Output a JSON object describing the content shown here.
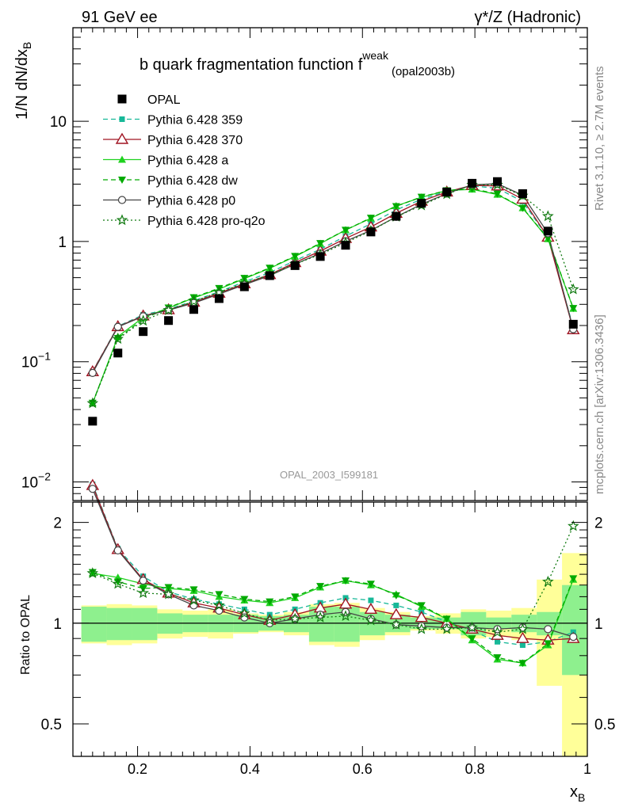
{
  "header": {
    "left": "91 GeV ee",
    "right": "γ*/Z (Hadronic)"
  },
  "side_text": {
    "rivet": "Rivet 3.1.10, ≥ 2.7M events",
    "mcplots": "mcplots.cern.ch [arXiv:1306.3436]"
  },
  "watermark": "OPAL_2003_I599181",
  "chart_data": {
    "type": "line",
    "title": "b quark fragmentation function f^weak (opal2003b)",
    "title_main": "b quark fragmentation function f",
    "title_sup": "weak",
    "title_sub": "(opal2003b)",
    "xlabel": "x_B",
    "xlabel_main": "x",
    "xlabel_sub": "B",
    "ylabel": "1/N dN/dx_B",
    "ylabel_main": "1/N dN/dx",
    "ylabel_sub": "B",
    "ratio_ylabel": "Ratio to OPAL",
    "xlim": [
      0.085,
      1.0
    ],
    "ylim": [
      0.007,
      60
    ],
    "yscale": "log",
    "ratio_ylim": [
      0.4,
      2.3
    ],
    "ratio_yscale": "log",
    "x_ticks": [
      {
        "v": 0.2,
        "label": "0.2"
      },
      {
        "v": 0.4,
        "label": "0.4"
      },
      {
        "v": 0.6,
        "label": "0.6"
      },
      {
        "v": 0.8,
        "label": "0.8"
      },
      {
        "v": 1.0,
        "label": "1"
      }
    ],
    "y_ticks": [
      {
        "v": 0.01,
        "base": "10",
        "exp": "−2"
      },
      {
        "v": 0.1,
        "base": "10",
        "exp": "−1"
      },
      {
        "v": 1,
        "base": "1",
        "exp": ""
      },
      {
        "v": 10,
        "base": "10",
        "exp": ""
      }
    ],
    "ratio_ticks": [
      {
        "v": 0.5,
        "label": "0.5"
      },
      {
        "v": 1,
        "label": "1"
      },
      {
        "v": 2,
        "label": "2"
      }
    ],
    "legend_position": "top-left",
    "x": [
      0.12,
      0.165,
      0.21,
      0.255,
      0.3,
      0.345,
      0.39,
      0.435,
      0.48,
      0.525,
      0.57,
      0.615,
      0.66,
      0.705,
      0.75,
      0.795,
      0.84,
      0.885,
      0.93,
      0.975
    ],
    "bin_edges": [
      0.1,
      0.145,
      0.19,
      0.235,
      0.28,
      0.325,
      0.37,
      0.415,
      0.46,
      0.505,
      0.55,
      0.595,
      0.64,
      0.685,
      0.73,
      0.775,
      0.82,
      0.865,
      0.91,
      0.955,
      1.0
    ],
    "data": {
      "name": "OPAL",
      "values": [
        0.032,
        0.118,
        0.178,
        0.22,
        0.272,
        0.335,
        0.42,
        0.52,
        0.63,
        0.75,
        0.93,
        1.2,
        1.62,
        2.08,
        2.58,
        3.05,
        3.15,
        2.5,
        1.22,
        0.205
      ],
      "band_green": [
        0.12,
        0.11,
        0.11,
        0.07,
        0.06,
        0.06,
        0.06,
        0.05,
        0.06,
        0.12,
        0.12,
        0.08,
        0.06,
        0.04,
        0.04,
        0.08,
        0.04,
        0.06,
        0.08,
        0.3
      ],
      "band_yellow": [
        0.13,
        0.14,
        0.13,
        0.1,
        0.09,
        0.1,
        0.07,
        0.06,
        0.08,
        0.14,
        0.15,
        0.11,
        0.08,
        0.05,
        0.07,
        0.1,
        0.09,
        0.11,
        0.35,
        0.62
      ]
    },
    "series": [
      {
        "name": "Pythia 6.428 359",
        "color": "#17b898",
        "marker": "square-small",
        "dash": "6,4",
        "ratio": [
          2.6,
          1.67,
          1.38,
          1.24,
          1.18,
          1.14,
          1.1,
          1.06,
          1.1,
          1.15,
          1.19,
          1.17,
          1.13,
          1.08,
          1.01,
          0.95,
          0.88,
          0.86,
          0.88,
          0.94
        ]
      },
      {
        "name": "Pythia 6.428 370",
        "color": "#a01422",
        "marker": "triangle-open",
        "dash": "",
        "ratio": [
          2.58,
          1.66,
          1.35,
          1.23,
          1.15,
          1.11,
          1.06,
          1.02,
          1.06,
          1.11,
          1.14,
          1.1,
          1.06,
          1.04,
          1.0,
          0.96,
          0.92,
          0.9,
          0.89,
          0.9
        ]
      },
      {
        "name": "Pythia 6.428 a",
        "color": "#1fd21f",
        "marker": "triangle-filled",
        "dash": "",
        "ratio": [
          1.41,
          1.37,
          1.31,
          1.27,
          1.25,
          1.2,
          1.17,
          1.15,
          1.19,
          1.28,
          1.34,
          1.3,
          1.22,
          1.12,
          1.03,
          0.89,
          0.78,
          0.76,
          0.86,
          1.35
        ]
      },
      {
        "name": "Pythia 6.428 dw",
        "color": "#00aa00",
        "marker": "triangle-down-filled",
        "dash": "6,4",
        "ratio": [
          1.42,
          1.33,
          1.27,
          1.28,
          1.26,
          1.22,
          1.18,
          1.16,
          1.2,
          1.29,
          1.34,
          1.31,
          1.21,
          1.13,
          1.03,
          0.9,
          0.79,
          0.76,
          0.87,
          1.36
        ]
      },
      {
        "name": "Pythia 6.428 p0",
        "color": "#444444",
        "marker": "circle-open",
        "dash": "",
        "ratio": [
          2.52,
          1.65,
          1.34,
          1.22,
          1.13,
          1.09,
          1.04,
          1.0,
          1.03,
          1.06,
          1.08,
          1.03,
          0.99,
          0.98,
          0.97,
          0.97,
          0.96,
          0.97,
          0.96,
          0.91
        ]
      },
      {
        "name": "Pythia 6.428 pro-q2o",
        "color": "#117a11",
        "marker": "star",
        "dash": "2,3",
        "ratio": [
          1.41,
          1.31,
          1.23,
          1.22,
          1.17,
          1.13,
          1.07,
          1.02,
          1.03,
          1.04,
          1.05,
          1.02,
          0.99,
          0.96,
          0.96,
          0.97,
          0.94,
          0.96,
          1.33,
          1.95
        ]
      }
    ]
  }
}
